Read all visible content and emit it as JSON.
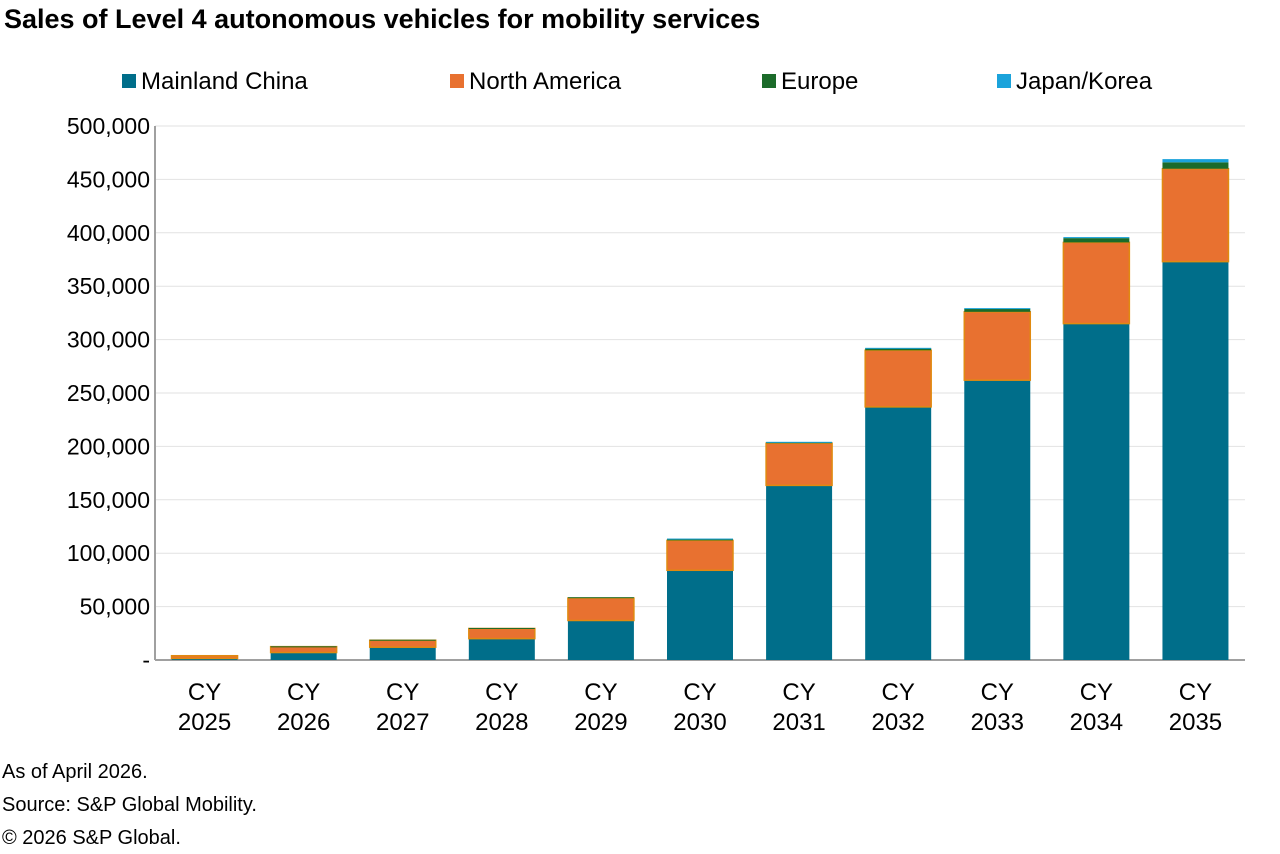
{
  "chart_data": {
    "type": "bar",
    "stacked": true,
    "title": "Sales of Level 4 autonomous vehicles for mobility services",
    "categories": [
      [
        "CY",
        "2025"
      ],
      [
        "CY",
        "2026"
      ],
      [
        "CY",
        "2027"
      ],
      [
        "CY",
        "2028"
      ],
      [
        "CY",
        "2029"
      ],
      [
        "CY",
        "2030"
      ],
      [
        "CY",
        "2031"
      ],
      [
        "CY",
        "2032"
      ],
      [
        "CY",
        "2033"
      ],
      [
        "CY",
        "2034"
      ],
      [
        "CY",
        "2035"
      ]
    ],
    "series": [
      {
        "name": "Mainland China",
        "color": "#006E8A",
        "values": [
          1500,
          7000,
          12000,
          20000,
          37000,
          84000,
          163500,
          237000,
          262000,
          315000,
          373000
        ]
      },
      {
        "name": "North America",
        "color": "#E87130",
        "values": [
          2500,
          5500,
          6500,
          9500,
          21000,
          28000,
          39500,
          53000,
          64000,
          76000,
          87000
        ]
      },
      {
        "name": "Europe",
        "color": "#1B6B2A",
        "values": [
          0,
          300,
          500,
          500,
          800,
          1500,
          1000,
          2000,
          3000,
          4000,
          6000
        ]
      },
      {
        "name": "Japan/Korea",
        "color": "#1BA3DB",
        "values": [
          0,
          0,
          0,
          0,
          0,
          200,
          300,
          300,
          500,
          1000,
          3000
        ]
      }
    ],
    "ylim": [
      0,
      500000
    ],
    "yticks": [
      "-",
      "50,000",
      "100,000",
      "150,000",
      "200,000",
      "250,000",
      "300,000",
      "350,000",
      "400,000",
      "450,000",
      "500,000"
    ],
    "grid": true,
    "legend": "top"
  },
  "footnotes": [
    "As of April 2026.",
    "Source: S&P Global Mobility.",
    "© 2026 S&P Global."
  ]
}
